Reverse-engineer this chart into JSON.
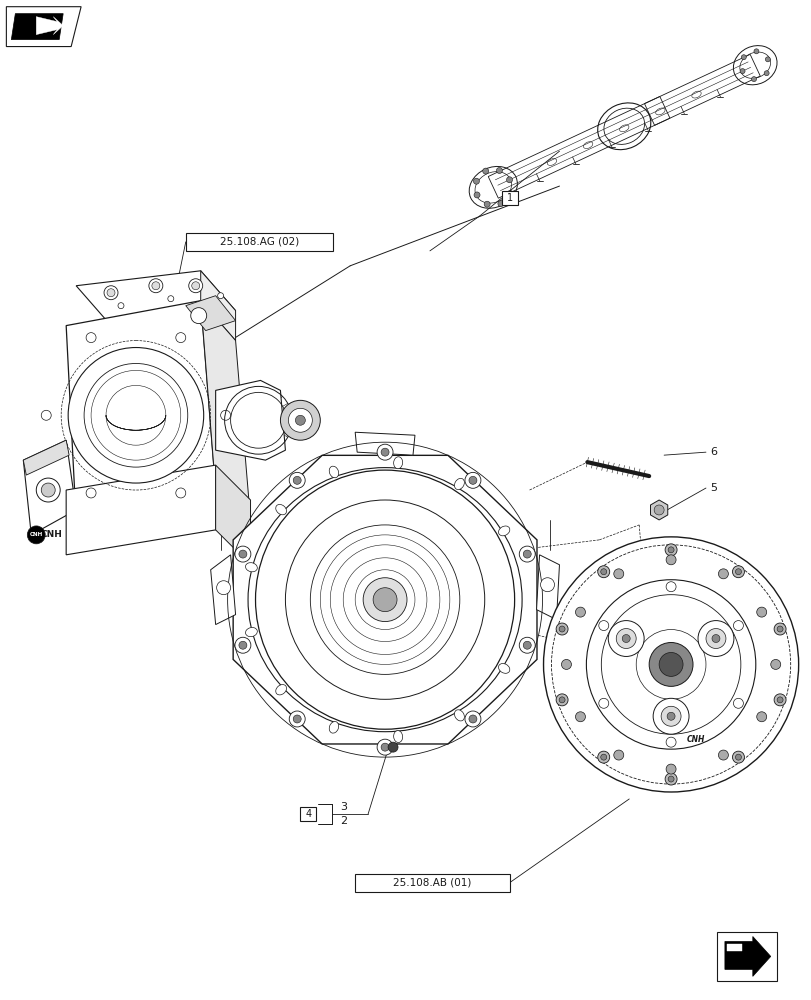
{
  "bg_color": "#ffffff",
  "fig_width": 8.12,
  "fig_height": 10.0,
  "dpi": 100,
  "labels": {
    "ref1": "1",
    "ref2": "2",
    "ref3": "3",
    "ref4": "4",
    "ref5": "5",
    "ref6": "6",
    "box_ag": "25.108.AG (02)",
    "box_ab": "25.108.AB (01)"
  },
  "line_color": "#1a1a1a",
  "gray_color": "#888888",
  "light_gray": "#cccccc",
  "dark_gray": "#444444"
}
